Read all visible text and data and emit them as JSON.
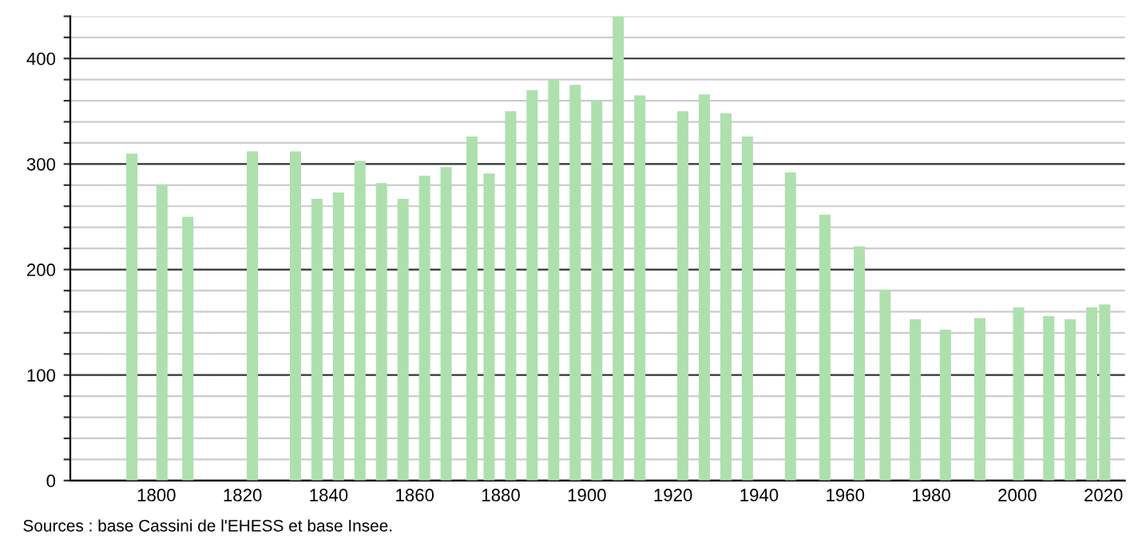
{
  "chart_data": {
    "type": "bar",
    "x": [
      1793,
      1800,
      1806,
      1821,
      1831,
      1836,
      1841,
      1846,
      1851,
      1856,
      1861,
      1866,
      1872,
      1876,
      1881,
      1886,
      1891,
      1896,
      1901,
      1906,
      1911,
      1921,
      1926,
      1931,
      1936,
      1946,
      1954,
      1962,
      1968,
      1975,
      1982,
      1990,
      1999,
      2006,
      2011,
      2016,
      2019
    ],
    "values": [
      310,
      280,
      250,
      312,
      312,
      267,
      273,
      303,
      282,
      267,
      289,
      297,
      326,
      291,
      350,
      370,
      380,
      375,
      360,
      440,
      365,
      350,
      366,
      348,
      326,
      292,
      252,
      222,
      181,
      153,
      143,
      154,
      164,
      156,
      153,
      164,
      167
    ],
    "color": "#aee0ae",
    "xlim": [
      1780,
      2025
    ],
    "xticks": [
      1800,
      1820,
      1840,
      1860,
      1880,
      1900,
      1920,
      1940,
      1960,
      1980,
      2000,
      2020
    ],
    "ylim": [
      0,
      440
    ],
    "yticks": [
      0,
      {
        "value": 20,
        "label": null
      },
      {
        "value": 40,
        "label": null
      },
      {
        "value": 60,
        "label": null
      },
      {
        "value": 80,
        "label": null
      },
      100,
      {
        "value": 120,
        "label": null
      },
      {
        "value": 140,
        "label": null
      },
      {
        "value": 160,
        "label": null
      },
      {
        "value": 180,
        "label": null
      },
      200,
      {
        "value": 220,
        "label": null
      },
      {
        "value": 240,
        "label": null
      },
      {
        "value": 260,
        "label": null
      },
      {
        "value": 280,
        "label": null
      },
      300,
      {
        "value": 320,
        "label": null
      },
      {
        "value": 340,
        "label": null
      },
      {
        "value": 360,
        "label": null
      },
      {
        "value": 380,
        "label": null
      },
      400,
      {
        "value": 420,
        "label": null
      },
      {
        "value": 440,
        "label": null
      }
    ],
    "grid": "y",
    "annotations": [
      "Sources : base Cassini de l'EHESS et base Insee."
    ]
  }
}
